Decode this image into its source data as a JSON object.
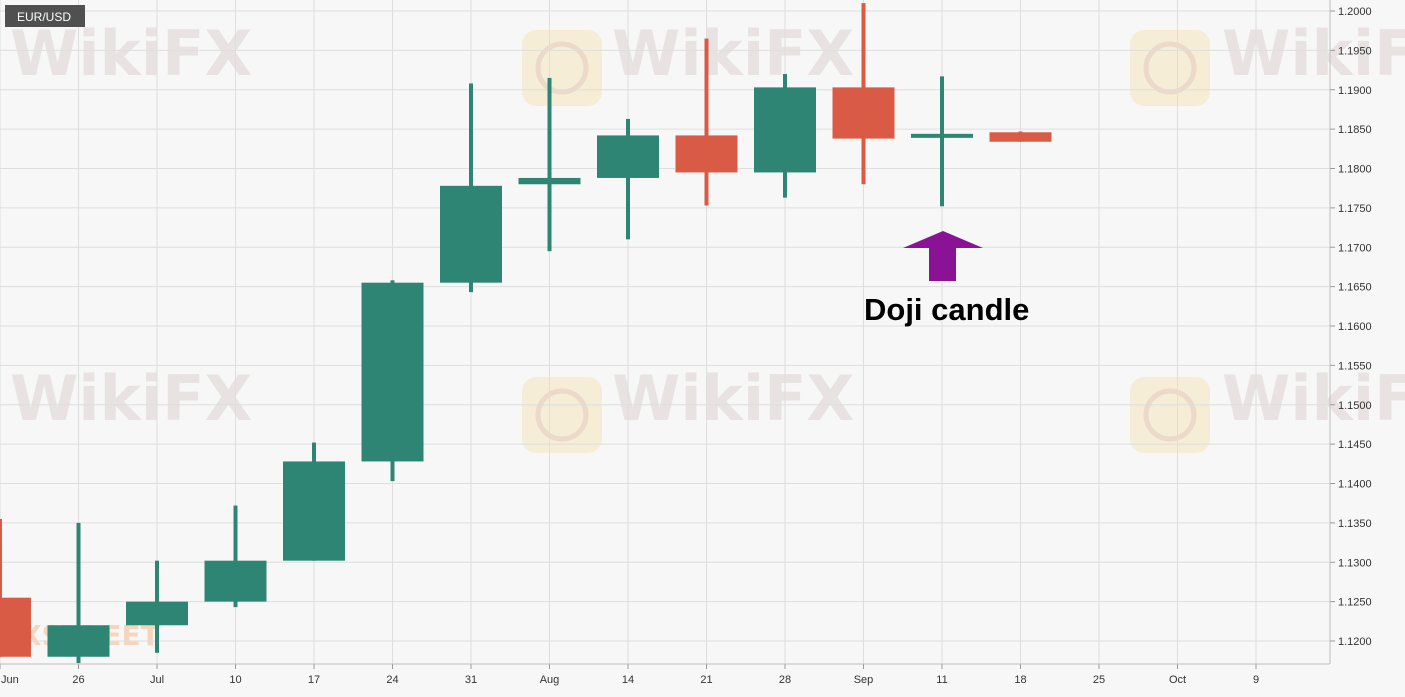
{
  "chart_data": {
    "type": "candlestick",
    "symbol": "EUR/USD",
    "x_tick_labels": [
      "Jun",
      "26",
      "Jul",
      "10",
      "17",
      "24",
      "31",
      "Aug",
      "14",
      "21",
      "28",
      "Sep",
      "11",
      "18",
      "25",
      "Oct",
      "9"
    ],
    "y_tick_labels": [
      "1.2000",
      "1.1950",
      "1.1900",
      "1.1850",
      "1.1800",
      "1.1750",
      "1.1700",
      "1.1650",
      "1.1600",
      "1.1550",
      "1.1500",
      "1.1450",
      "1.1400",
      "1.1350",
      "1.1300",
      "1.1250",
      "1.1200"
    ],
    "ylim": [
      1.1172,
      1.2013
    ],
    "grid": true,
    "candles": [
      {
        "week": "Jun 19",
        "open": 1.1255,
        "high": 1.1355,
        "low": 1.118,
        "close": 1.118
      },
      {
        "week": "Jun 26",
        "open": 1.118,
        "high": 1.135,
        "low": 1.1172,
        "close": 1.122
      },
      {
        "week": "Jul 3",
        "open": 1.122,
        "high": 1.1302,
        "low": 1.1185,
        "close": 1.125
      },
      {
        "week": "Jul 10",
        "open": 1.125,
        "high": 1.1372,
        "low": 1.1243,
        "close": 1.1302
      },
      {
        "week": "Jul 17",
        "open": 1.1302,
        "high": 1.1452,
        "low": 1.1302,
        "close": 1.1428
      },
      {
        "week": "Jul 24",
        "open": 1.1428,
        "high": 1.1658,
        "low": 1.1403,
        "close": 1.1655
      },
      {
        "week": "Jul 31",
        "open": 1.1655,
        "high": 1.1908,
        "low": 1.1643,
        "close": 1.1778
      },
      {
        "week": "Aug 7",
        "open": 1.178,
        "high": 1.1915,
        "low": 1.1695,
        "close": 1.1788
      },
      {
        "week": "Aug 14",
        "open": 1.1788,
        "high": 1.1863,
        "low": 1.171,
        "close": 1.1842
      },
      {
        "week": "Aug 21",
        "open": 1.1842,
        "high": 1.1965,
        "low": 1.1753,
        "close": 1.1795
      },
      {
        "week": "Aug 28",
        "open": 1.1795,
        "high": 1.192,
        "low": 1.1763,
        "close": 1.1903
      },
      {
        "week": "Sep 4",
        "open": 1.1903,
        "high": 1.201,
        "low": 1.178,
        "close": 1.1838
      },
      {
        "week": "Sep 11",
        "open": 1.1841,
        "high": 1.1917,
        "low": 1.1752,
        "close": 1.1844
      },
      {
        "week": "Sep 18",
        "open": 1.1846,
        "high": 1.1847,
        "low": 1.1834,
        "close": 1.1834
      }
    ],
    "annotation": {
      "text": "Doji candle",
      "target_week": "Sep 11"
    }
  },
  "colors": {
    "bull": "#2f8573",
    "bear": "#d95a45",
    "arrow": "#8a1295",
    "grid": "#dedede",
    "background": "#f7f7f7"
  },
  "watermark": {
    "brand": "WikiFX",
    "partner": "XSTREET"
  }
}
